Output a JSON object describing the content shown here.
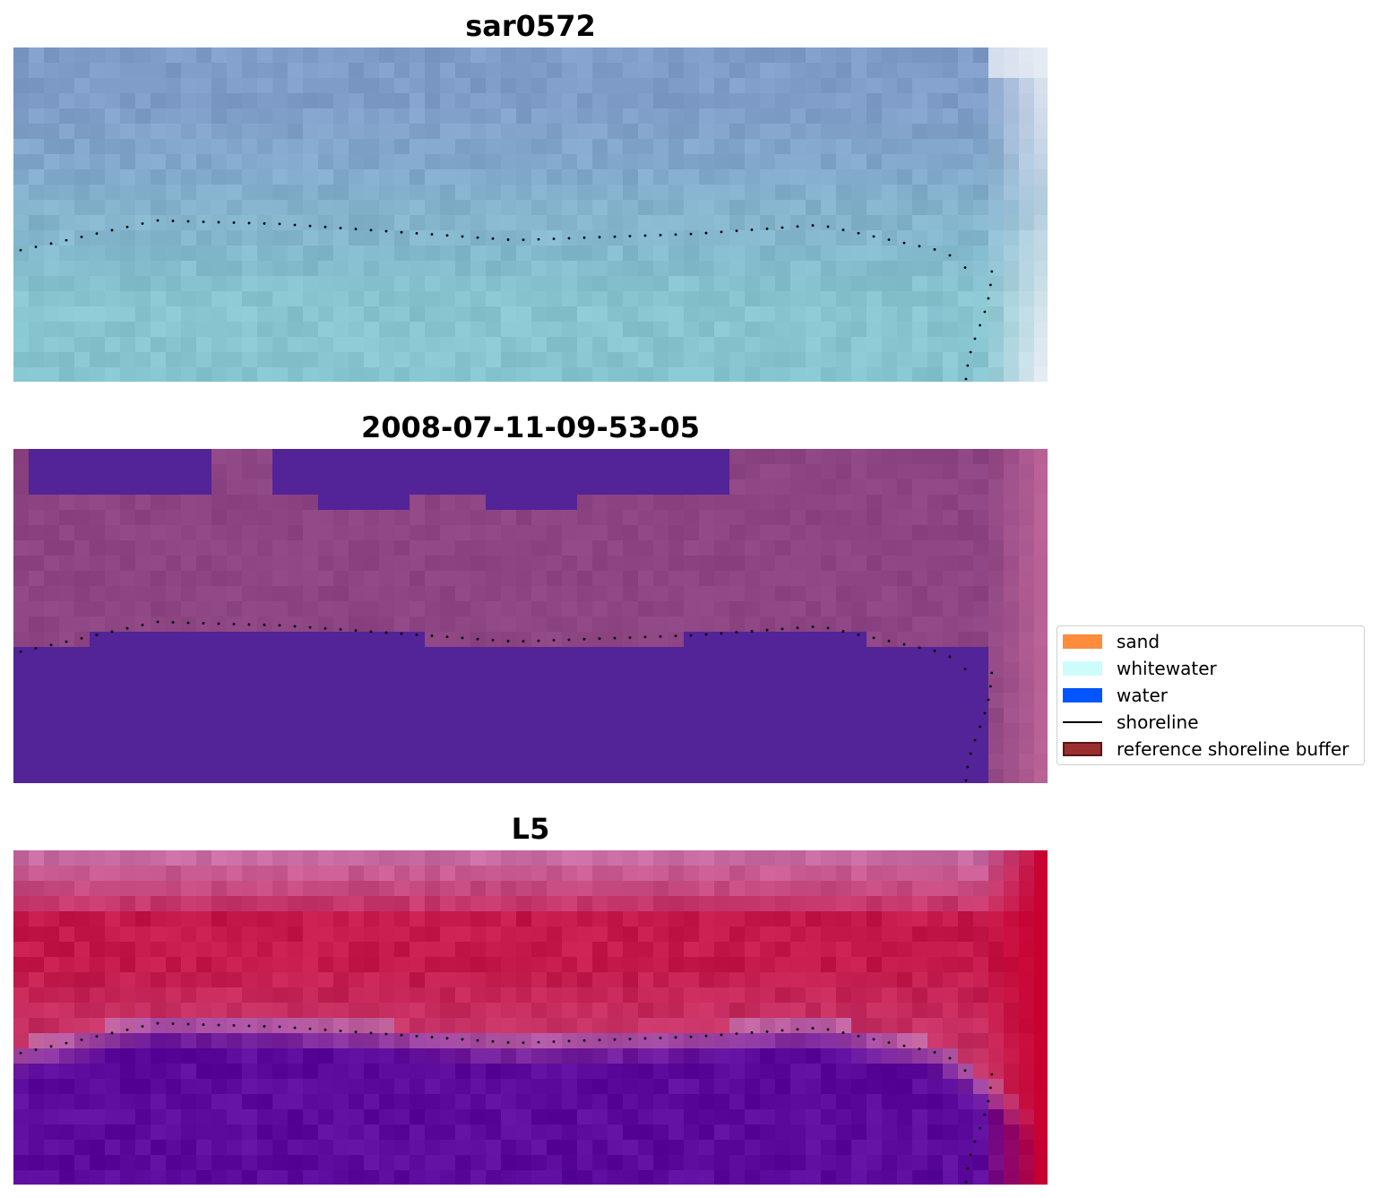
{
  "panels": [
    {
      "title": "sar0572",
      "style": "sar"
    },
    {
      "title": "2008-07-11-09-53-05",
      "style": "classified"
    },
    {
      "title": "L5",
      "style": "l5"
    }
  ],
  "legend": {
    "items": [
      {
        "label": "sand",
        "color": "#ff8c3a",
        "kind": "patch"
      },
      {
        "label": "whitewater",
        "color": "#ccfdfb",
        "kind": "patch"
      },
      {
        "label": "water",
        "color": "#0055ff",
        "kind": "patch"
      },
      {
        "label": "shoreline",
        "color": "#000000",
        "kind": "line"
      },
      {
        "label": "reference shoreline buffer",
        "color": "#9b2f2f",
        "kind": "patch"
      }
    ]
  },
  "colors": {
    "sar_top": "#7f9cc8",
    "sar_bottom": "#86c5cf",
    "sar_edge": "#e6ecf4",
    "classified_land": "#8c4482",
    "classified_water": "#532398",
    "classified_edge": "#c66a9c",
    "l5_top": "#c86aa2",
    "l5_mid": "#c4194a",
    "l5_bottom": "#5c0a9c",
    "l5_edge": "#c8002f"
  }
}
